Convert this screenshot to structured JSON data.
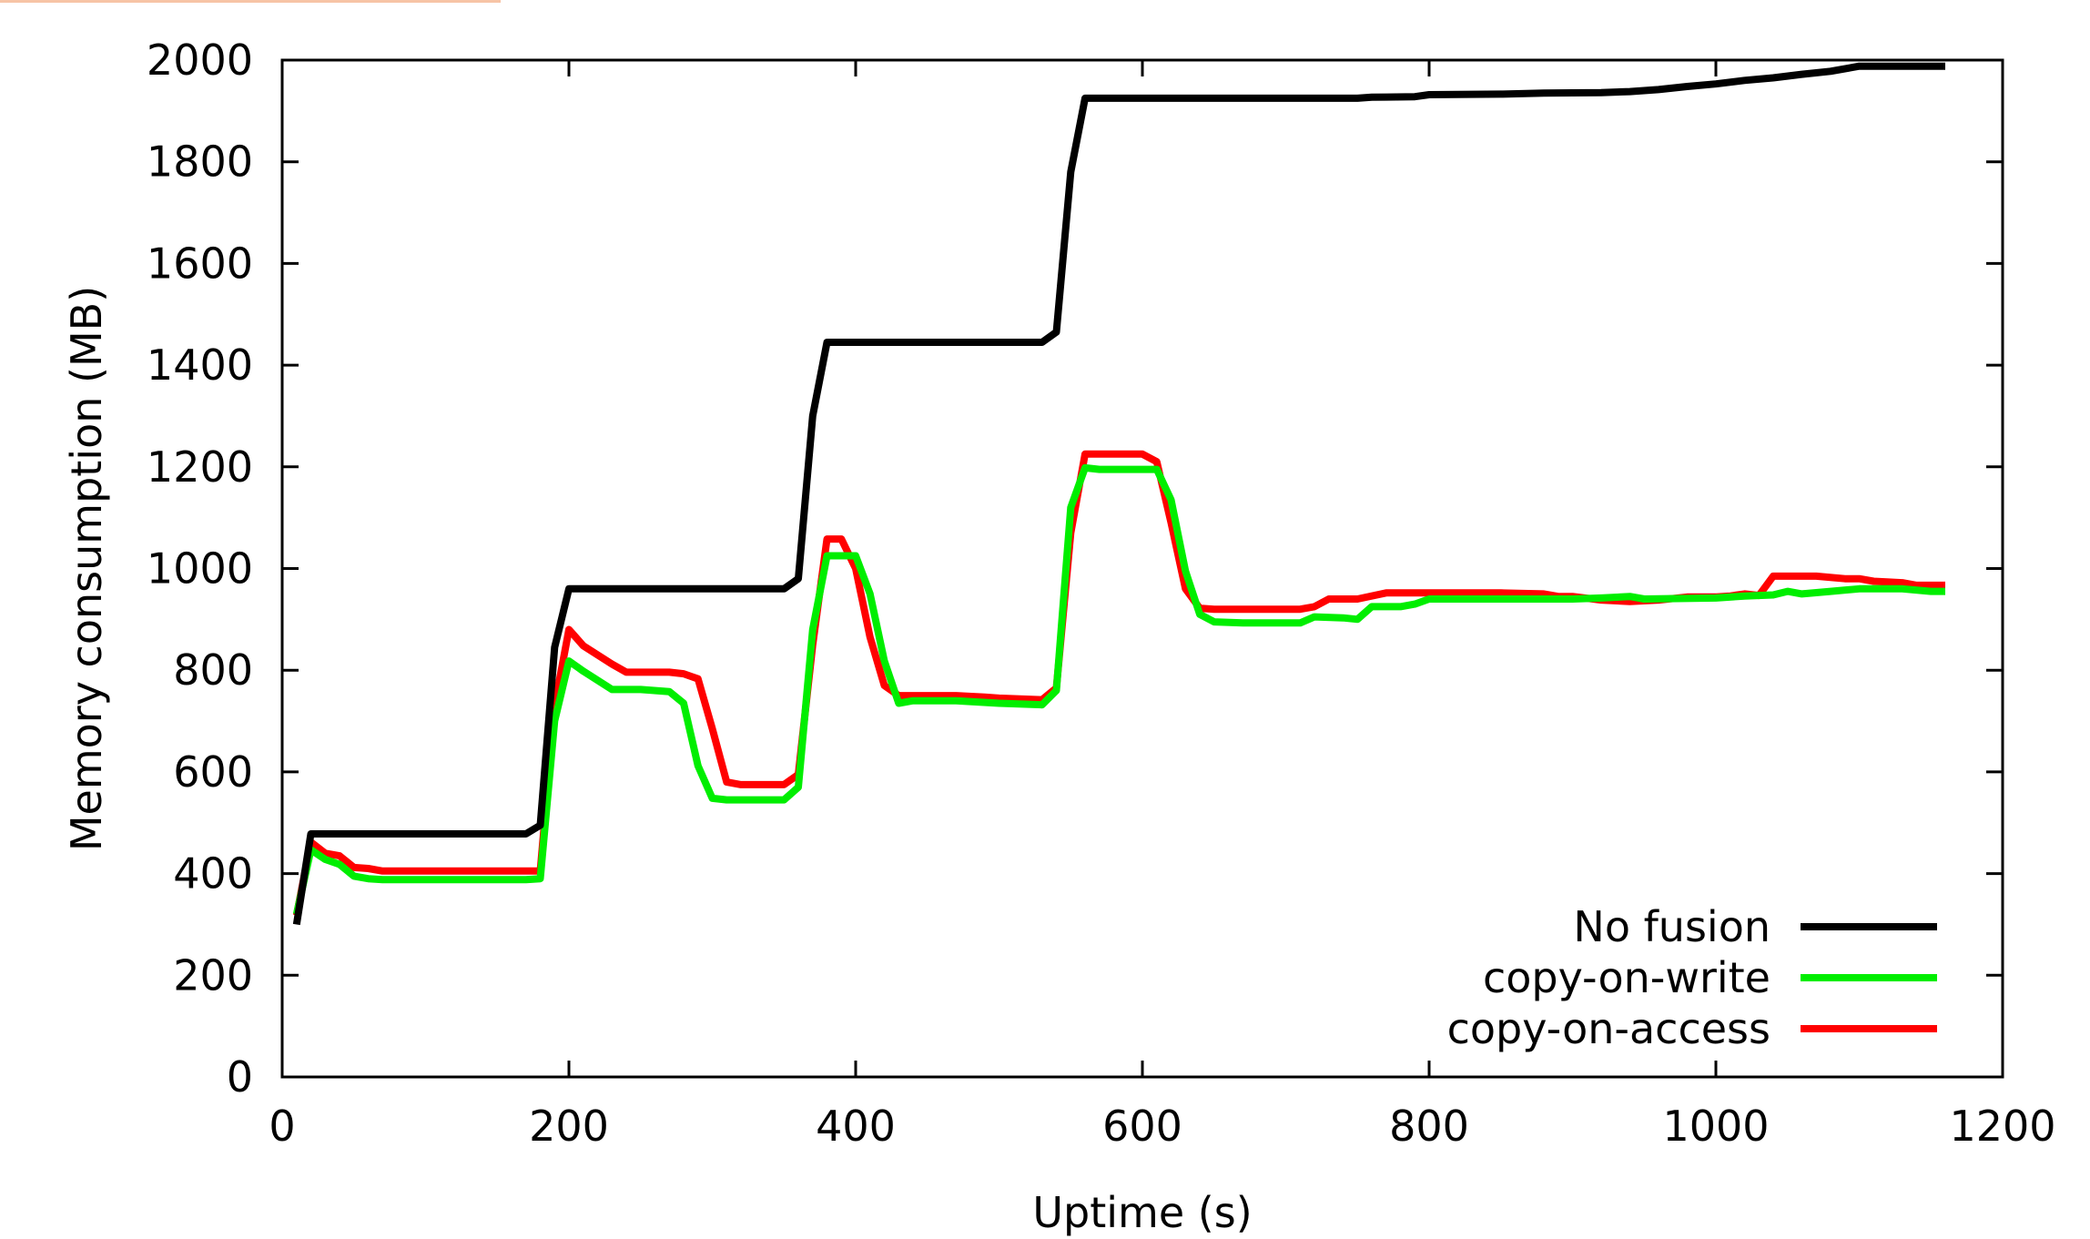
{
  "chart_data": {
    "type": "line",
    "xlabel": "Uptime (s)",
    "ylabel": "Memory consumption (MB)",
    "xlim": [
      0,
      1200
    ],
    "ylim": [
      0,
      2000
    ],
    "xticks": [
      0,
      200,
      400,
      600,
      800,
      1000,
      1200
    ],
    "yticks": [
      0,
      200,
      400,
      600,
      800,
      1000,
      1200,
      1400,
      1600,
      1800,
      2000
    ],
    "grid": false,
    "legend_position": "bottom-right",
    "series": [
      {
        "name": "No fusion",
        "color": "#000000",
        "points": [
          [
            10,
            300
          ],
          [
            20,
            478
          ],
          [
            50,
            478
          ],
          [
            100,
            478
          ],
          [
            150,
            478
          ],
          [
            170,
            478
          ],
          [
            180,
            495
          ],
          [
            190,
            845
          ],
          [
            200,
            960
          ],
          [
            250,
            960
          ],
          [
            300,
            960
          ],
          [
            340,
            960
          ],
          [
            350,
            960
          ],
          [
            360,
            980
          ],
          [
            370,
            1300
          ],
          [
            380,
            1445
          ],
          [
            400,
            1445
          ],
          [
            450,
            1445
          ],
          [
            500,
            1445
          ],
          [
            530,
            1445
          ],
          [
            540,
            1465
          ],
          [
            550,
            1780
          ],
          [
            560,
            1925
          ],
          [
            600,
            1925
          ],
          [
            650,
            1925
          ],
          [
            700,
            1925
          ],
          [
            750,
            1925
          ],
          [
            760,
            1927
          ],
          [
            790,
            1928
          ],
          [
            800,
            1932
          ],
          [
            850,
            1933
          ],
          [
            880,
            1935
          ],
          [
            920,
            1936
          ],
          [
            940,
            1938
          ],
          [
            960,
            1942
          ],
          [
            980,
            1948
          ],
          [
            1000,
            1953
          ],
          [
            1020,
            1960
          ],
          [
            1040,
            1965
          ],
          [
            1060,
            1972
          ],
          [
            1080,
            1978
          ],
          [
            1100,
            1988
          ],
          [
            1130,
            1988
          ],
          [
            1160,
            1988
          ]
        ]
      },
      {
        "name": "copy-on-write",
        "color": "#00ee00",
        "points": [
          [
            10,
            320
          ],
          [
            20,
            447
          ],
          [
            30,
            428
          ],
          [
            40,
            418
          ],
          [
            50,
            395
          ],
          [
            60,
            390
          ],
          [
            70,
            388
          ],
          [
            100,
            388
          ],
          [
            150,
            388
          ],
          [
            170,
            388
          ],
          [
            180,
            390
          ],
          [
            190,
            700
          ],
          [
            200,
            818
          ],
          [
            210,
            798
          ],
          [
            230,
            762
          ],
          [
            250,
            762
          ],
          [
            270,
            758
          ],
          [
            280,
            735
          ],
          [
            290,
            612
          ],
          [
            300,
            548
          ],
          [
            310,
            545
          ],
          [
            340,
            545
          ],
          [
            350,
            545
          ],
          [
            360,
            570
          ],
          [
            370,
            880
          ],
          [
            380,
            1025
          ],
          [
            400,
            1025
          ],
          [
            410,
            950
          ],
          [
            420,
            818
          ],
          [
            430,
            735
          ],
          [
            440,
            740
          ],
          [
            470,
            740
          ],
          [
            500,
            735
          ],
          [
            530,
            732
          ],
          [
            540,
            760
          ],
          [
            550,
            1120
          ],
          [
            560,
            1198
          ],
          [
            570,
            1195
          ],
          [
            600,
            1195
          ],
          [
            610,
            1195
          ],
          [
            620,
            1135
          ],
          [
            630,
            995
          ],
          [
            640,
            910
          ],
          [
            650,
            895
          ],
          [
            670,
            893
          ],
          [
            700,
            893
          ],
          [
            710,
            893
          ],
          [
            720,
            905
          ],
          [
            740,
            903
          ],
          [
            750,
            900
          ],
          [
            760,
            925
          ],
          [
            780,
            925
          ],
          [
            790,
            930
          ],
          [
            800,
            940
          ],
          [
            850,
            940
          ],
          [
            900,
            940
          ],
          [
            920,
            942
          ],
          [
            940,
            945
          ],
          [
            950,
            940
          ],
          [
            1000,
            942
          ],
          [
            1020,
            946
          ],
          [
            1040,
            948
          ],
          [
            1050,
            955
          ],
          [
            1060,
            950
          ],
          [
            1080,
            955
          ],
          [
            1100,
            960
          ],
          [
            1130,
            960
          ],
          [
            1150,
            955
          ],
          [
            1160,
            955
          ]
        ]
      },
      {
        "name": "copy-on-access",
        "color": "#ff0000",
        "points": [
          [
            10,
            318
          ],
          [
            20,
            462
          ],
          [
            30,
            440
          ],
          [
            40,
            435
          ],
          [
            50,
            412
          ],
          [
            60,
            410
          ],
          [
            70,
            405
          ],
          [
            100,
            405
          ],
          [
            150,
            405
          ],
          [
            170,
            405
          ],
          [
            180,
            405
          ],
          [
            190,
            730
          ],
          [
            200,
            880
          ],
          [
            210,
            848
          ],
          [
            230,
            812
          ],
          [
            240,
            796
          ],
          [
            270,
            796
          ],
          [
            280,
            793
          ],
          [
            290,
            783
          ],
          [
            300,
            685
          ],
          [
            310,
            580
          ],
          [
            320,
            575
          ],
          [
            340,
            575
          ],
          [
            350,
            575
          ],
          [
            360,
            595
          ],
          [
            370,
            850
          ],
          [
            380,
            1058
          ],
          [
            390,
            1058
          ],
          [
            400,
            1000
          ],
          [
            410,
            865
          ],
          [
            420,
            770
          ],
          [
            430,
            750
          ],
          [
            470,
            750
          ],
          [
            490,
            747
          ],
          [
            500,
            745
          ],
          [
            530,
            742
          ],
          [
            540,
            765
          ],
          [
            550,
            1070
          ],
          [
            560,
            1225
          ],
          [
            600,
            1225
          ],
          [
            610,
            1210
          ],
          [
            620,
            1090
          ],
          [
            630,
            960
          ],
          [
            640,
            922
          ],
          [
            650,
            920
          ],
          [
            700,
            920
          ],
          [
            710,
            920
          ],
          [
            720,
            925
          ],
          [
            730,
            940
          ],
          [
            750,
            940
          ],
          [
            770,
            952
          ],
          [
            800,
            952
          ],
          [
            850,
            952
          ],
          [
            880,
            950
          ],
          [
            890,
            945
          ],
          [
            900,
            945
          ],
          [
            920,
            938
          ],
          [
            940,
            935
          ],
          [
            960,
            938
          ],
          [
            980,
            944
          ],
          [
            1000,
            944
          ],
          [
            1010,
            946
          ],
          [
            1020,
            950
          ],
          [
            1030,
            947
          ],
          [
            1040,
            985
          ],
          [
            1070,
            985
          ],
          [
            1090,
            980
          ],
          [
            1100,
            980
          ],
          [
            1110,
            975
          ],
          [
            1130,
            972
          ],
          [
            1140,
            967
          ],
          [
            1160,
            967
          ]
        ]
      }
    ]
  }
}
